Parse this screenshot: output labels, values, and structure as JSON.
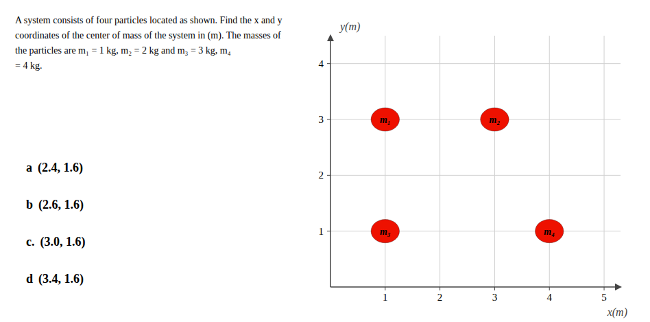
{
  "chart_data": {
    "type": "scatter",
    "x_label": "x(m)",
    "y_label": "y(m)",
    "x": [
      1,
      3,
      1,
      4
    ],
    "values": [
      3,
      3,
      1,
      1
    ],
    "point_labels": [
      "m₁",
      "m₂",
      "m₃",
      "m₄"
    ],
    "color": "#ee1100",
    "xlim": [
      0,
      5.3
    ],
    "xticks": [
      1,
      2,
      3,
      4,
      5
    ],
    "ylim": [
      0,
      4.5
    ],
    "yticks": [
      1,
      2,
      3,
      4
    ],
    "grid": true,
    "annotations": {
      "question": [
        "A system consists of four particles located as shown. Find the x and y",
        "coordinates of the center of mass of the system in (m). The masses of",
        "the particles are  m₁  = 1 kg, m₂ = 2 kg and  m₃ = 3 kg,  m₄",
        "= 4 kg."
      ],
      "choices": [
        {
          "label": "a",
          "text": "(2.4, 1.6)"
        },
        {
          "label": "b",
          "text": "(2.6, 1.6)"
        },
        {
          "label": "c.",
          "text": "(3.0, 1.6)"
        },
        {
          "label": "d",
          "text": "(3.4, 1.6)"
        }
      ]
    }
  }
}
